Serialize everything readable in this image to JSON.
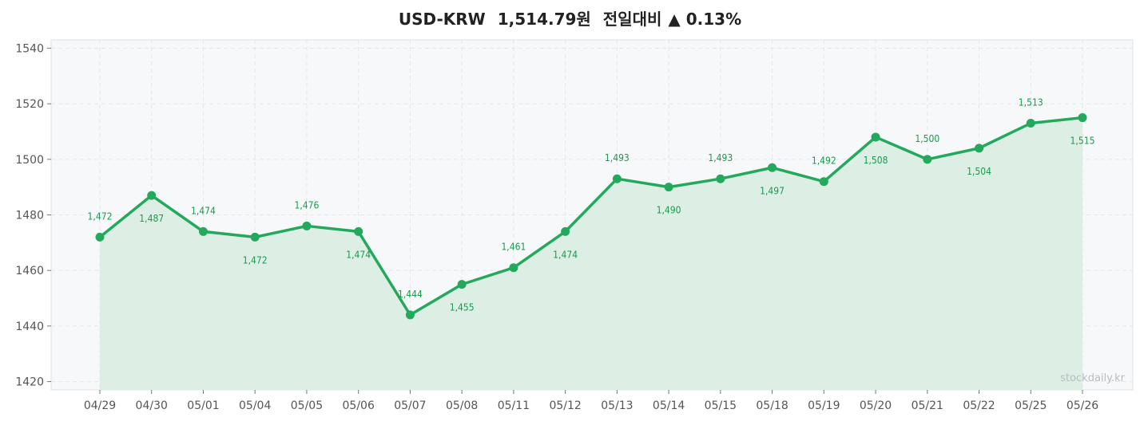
{
  "title": {
    "pair": "USD-KRW",
    "price": "1,514.79원",
    "change_label": "전일대비",
    "change": "▲ 0.13%"
  },
  "watermark": "stockdaily.kr",
  "colors": {
    "line": "#22a95b",
    "label": "#1a9a4e",
    "area": "#ddefe5",
    "plot_bg": "#f7f8fa",
    "grid": "#e3e6ea",
    "border": "#dde0e4"
  },
  "chart_data": {
    "type": "line",
    "title": "USD-KRW 1,514.79원 전일대비 ▲ 0.13%",
    "categories": [
      "04/29",
      "04/30",
      "05/01",
      "05/04",
      "05/05",
      "05/06",
      "05/07",
      "05/08",
      "05/11",
      "05/12",
      "05/13",
      "05/14",
      "05/15",
      "05/18",
      "05/19",
      "05/20",
      "05/21",
      "05/22",
      "05/25",
      "05/26"
    ],
    "values": [
      1472,
      1487,
      1474,
      1472,
      1476,
      1474,
      1444,
      1455,
      1461,
      1474,
      1493,
      1490,
      1493,
      1497,
      1492,
      1508,
      1500,
      1504,
      1513,
      1515
    ],
    "data_labels": [
      "1,472",
      "1,487",
      "1,474",
      "1,472",
      "1,476",
      "1,474",
      "1,444",
      "1,455",
      "1,461",
      "1,474",
      "1,493",
      "1,490",
      "1,493",
      "1,497",
      "1,492",
      "1,508",
      "1,500",
      "1,504",
      "1,513",
      "1,515"
    ],
    "label_position": [
      "above",
      "below",
      "above",
      "below",
      "above",
      "below",
      "above",
      "below",
      "above",
      "below",
      "above",
      "below",
      "above",
      "below",
      "above",
      "below",
      "above",
      "below",
      "above",
      "below"
    ],
    "yticks": [
      1420,
      1440,
      1460,
      1480,
      1500,
      1520,
      1540
    ],
    "ylim": [
      1417,
      1543
    ],
    "grid": true,
    "area_fill": true
  }
}
